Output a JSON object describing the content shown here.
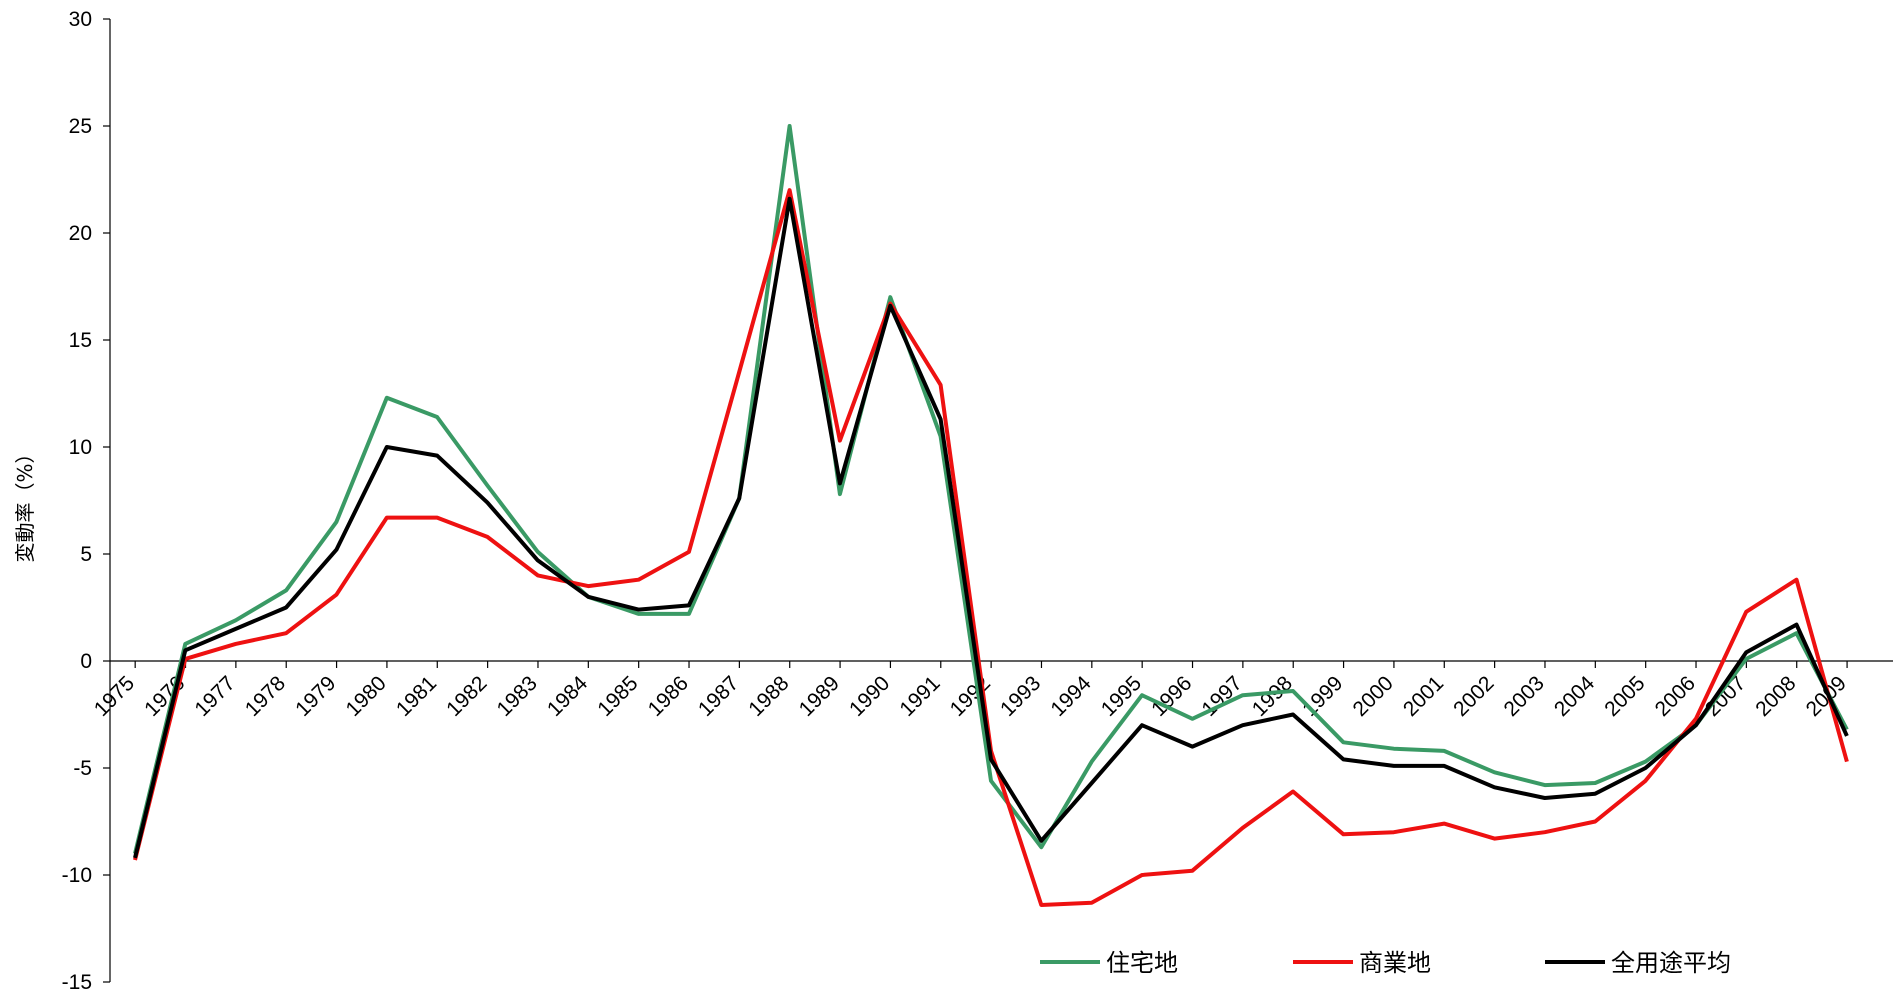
{
  "chart_data": {
    "type": "line",
    "title": "",
    "xlabel": "",
    "ylabel": "変動率（%）",
    "ylim": [
      -15,
      30
    ],
    "yticks": [
      -15,
      -10,
      -5,
      0,
      5,
      10,
      15,
      20,
      25,
      30
    ],
    "grid": false,
    "legend_position": "bottom-right",
    "categories": [
      "1975",
      "1976",
      "1977",
      "1978",
      "1979",
      "1980",
      "1981",
      "1982",
      "1983",
      "1984",
      "1985",
      "1986",
      "1987",
      "1988",
      "1989",
      "1990",
      "1991",
      "1992",
      "1993",
      "1994",
      "1995",
      "1996",
      "1997",
      "1998",
      "1999",
      "2000",
      "2001",
      "2002",
      "2003",
      "2004",
      "2005",
      "2006",
      "2007",
      "2008",
      "2009"
    ],
    "series": [
      {
        "name": "住宅地",
        "color": "#3a9a65",
        "values": [
          -9.0,
          0.8,
          1.9,
          3.3,
          6.5,
          12.3,
          11.4,
          8.2,
          5.1,
          3.0,
          2.2,
          2.2,
          7.6,
          25.0,
          7.8,
          17.0,
          10.5,
          -5.6,
          -8.7,
          -4.7,
          -1.6,
          -2.7,
          -1.6,
          -1.4,
          -3.8,
          -4.1,
          -4.2,
          -5.2,
          -5.8,
          -5.7,
          -4.7,
          -3.0,
          0.1,
          1.3,
          -3.2
        ]
      },
      {
        "name": "商業地",
        "color": "#ee1111",
        "values": [
          -9.3,
          0.1,
          0.8,
          1.3,
          3.1,
          6.7,
          6.7,
          5.8,
          4.0,
          3.5,
          3.8,
          5.1,
          13.5,
          22.0,
          10.3,
          16.7,
          12.9,
          -4.2,
          -11.4,
          -11.3,
          -10.0,
          -9.8,
          -7.8,
          -6.1,
          -8.1,
          -8.0,
          -7.6,
          -8.3,
          -8.0,
          -7.5,
          -5.6,
          -2.7,
          2.3,
          3.8,
          -4.7
        ]
      },
      {
        "name": "全用途平均",
        "color": "#000000",
        "values": [
          -9.2,
          0.5,
          1.5,
          2.5,
          5.2,
          10.0,
          9.6,
          7.4,
          4.7,
          3.0,
          2.4,
          2.6,
          7.6,
          21.6,
          8.3,
          16.6,
          11.3,
          -4.6,
          -8.4,
          -5.7,
          -3.0,
          -4.0,
          -3.0,
          -2.5,
          -4.6,
          -4.9,
          -4.9,
          -5.9,
          -6.4,
          -6.2,
          -5.0,
          -3.0,
          0.4,
          1.7,
          -3.5
        ]
      }
    ]
  }
}
